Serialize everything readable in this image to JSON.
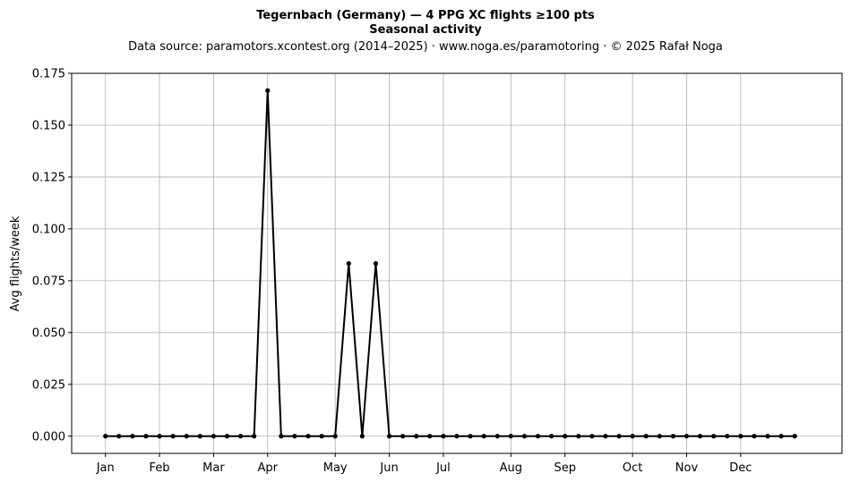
{
  "chart_data": {
    "type": "line",
    "title": "Tegernbach (Germany)  —  4 PPG XC flights ≥100 pts",
    "subtitle": "Seasonal activity",
    "source": "Data source: paramotors.xcontest.org (2014–2025)  ·  www.noga.es/paramotoring  ·  © 2025 Rafał Noga",
    "xlabel": "",
    "ylabel": "Avg flights/week",
    "x_ticks": [
      {
        "label": "Jan",
        "week": 1
      },
      {
        "label": "Feb",
        "week": 5
      },
      {
        "label": "Mar",
        "week": 9
      },
      {
        "label": "Apr",
        "week": 13
      },
      {
        "label": "May",
        "week": 18
      },
      {
        "label": "Jun",
        "week": 22
      },
      {
        "label": "Jul",
        "week": 26
      },
      {
        "label": "Aug",
        "week": 31
      },
      {
        "label": "Sep",
        "week": 35
      },
      {
        "label": "Oct",
        "week": 40
      },
      {
        "label": "Nov",
        "week": 44
      },
      {
        "label": "Dec",
        "week": 48
      }
    ],
    "xlim": [
      -1.5,
      55.5
    ],
    "ylim": [
      -0.0083,
      0.175
    ],
    "y_ticks": [
      "0.000",
      "0.025",
      "0.050",
      "0.075",
      "0.100",
      "0.125",
      "0.150",
      "0.175"
    ],
    "grid": true,
    "series": [
      {
        "color": "#000000",
        "x": [
          1,
          2,
          3,
          4,
          5,
          6,
          7,
          8,
          9,
          10,
          11,
          12,
          13,
          14,
          15,
          16,
          17,
          18,
          19,
          20,
          21,
          22,
          23,
          24,
          25,
          26,
          27,
          28,
          29,
          30,
          31,
          32,
          33,
          34,
          35,
          36,
          37,
          38,
          39,
          40,
          41,
          42,
          43,
          44,
          45,
          46,
          47,
          48,
          49,
          50,
          51,
          52
        ],
        "values": [
          0,
          0,
          0,
          0,
          0,
          0,
          0,
          0,
          0,
          0,
          0,
          0,
          0.1667,
          0,
          0,
          0,
          0,
          0,
          0.0833,
          0,
          0.0833,
          0,
          0,
          0,
          0,
          0,
          0,
          0,
          0,
          0,
          0,
          0,
          0,
          0,
          0,
          0,
          0,
          0,
          0,
          0,
          0,
          0,
          0,
          0,
          0,
          0,
          0,
          0,
          0,
          0,
          0,
          0
        ]
      }
    ]
  }
}
